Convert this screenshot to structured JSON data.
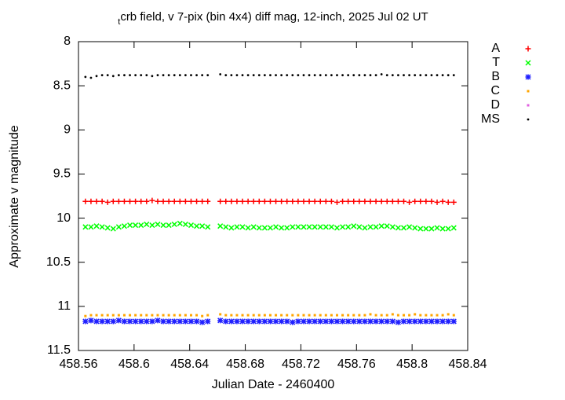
{
  "chart_data": {
    "type": "scatter",
    "title_sub": "t",
    "title": "crb field, v 7-pix (bin 4x4) diff mag, 12-inch, 2025 Jul 02 UT",
    "x_label": "Julian Date - 2460400",
    "y_label": "Approximate v magnitude",
    "xlim": [
      458.56,
      458.84
    ],
    "xticks": [
      458.56,
      458.6,
      458.64,
      458.68,
      458.72,
      458.76,
      458.8,
      458.84
    ],
    "ylim": [
      8,
      11.5
    ],
    "y_inverted": true,
    "yticks": [
      8,
      8.5,
      9,
      9.5,
      10,
      10.5,
      11,
      11.5
    ],
    "grid": false,
    "legend": "outside-top-right",
    "x": [
      458.565,
      458.569,
      458.573,
      458.577,
      458.581,
      458.585,
      458.589,
      458.593,
      458.597,
      458.601,
      458.605,
      458.609,
      458.613,
      458.617,
      458.621,
      458.625,
      458.629,
      458.633,
      458.637,
      458.641,
      458.645,
      458.649,
      458.653,
      458.662,
      458.666,
      458.67,
      458.674,
      458.678,
      458.682,
      458.686,
      458.69,
      458.694,
      458.698,
      458.702,
      458.706,
      458.71,
      458.714,
      458.718,
      458.722,
      458.726,
      458.73,
      458.734,
      458.738,
      458.742,
      458.746,
      458.75,
      458.754,
      458.758,
      458.762,
      458.766,
      458.77,
      458.774,
      458.778,
      458.782,
      458.786,
      458.79,
      458.794,
      458.798,
      458.802,
      458.806,
      458.81,
      458.814,
      458.818,
      458.822,
      458.826,
      458.83
    ],
    "series": [
      {
        "name": "A",
        "color": "#ff0000",
        "marker": "plus",
        "values": [
          9.81,
          9.81,
          9.81,
          9.81,
          9.82,
          9.81,
          9.81,
          9.81,
          9.81,
          9.81,
          9.81,
          9.81,
          9.8,
          9.81,
          9.81,
          9.81,
          9.81,
          9.81,
          9.81,
          9.81,
          9.81,
          9.81,
          9.81,
          9.81,
          9.81,
          9.81,
          9.81,
          9.81,
          9.81,
          9.81,
          9.81,
          9.81,
          9.81,
          9.81,
          9.81,
          9.81,
          9.81,
          9.81,
          9.81,
          9.81,
          9.81,
          9.81,
          9.81,
          9.81,
          9.82,
          9.81,
          9.81,
          9.81,
          9.81,
          9.81,
          9.81,
          9.81,
          9.81,
          9.81,
          9.81,
          9.81,
          9.81,
          9.82,
          9.81,
          9.81,
          9.81,
          9.81,
          9.82,
          9.81,
          9.82,
          9.82
        ]
      },
      {
        "name": "T",
        "color": "#00ff00",
        "marker": "cross",
        "values": [
          10.1,
          10.1,
          10.09,
          10.1,
          10.11,
          10.12,
          10.1,
          10.09,
          10.08,
          10.08,
          10.08,
          10.07,
          10.08,
          10.07,
          10.08,
          10.08,
          10.07,
          10.06,
          10.07,
          10.08,
          10.09,
          10.09,
          10.1,
          10.09,
          10.1,
          10.11,
          10.1,
          10.1,
          10.11,
          10.1,
          10.11,
          10.11,
          10.11,
          10.1,
          10.11,
          10.11,
          10.1,
          10.1,
          10.1,
          10.1,
          10.1,
          10.1,
          10.1,
          10.1,
          10.11,
          10.1,
          10.1,
          10.09,
          10.1,
          10.11,
          10.1,
          10.1,
          10.09,
          10.09,
          10.1,
          10.11,
          10.11,
          10.1,
          10.11,
          10.12,
          10.12,
          10.12,
          10.11,
          10.12,
          10.12,
          10.11
        ]
      },
      {
        "name": "B",
        "color": "#2020ff",
        "marker": "star",
        "values": [
          11.17,
          11.16,
          11.17,
          11.17,
          11.17,
          11.17,
          11.16,
          11.17,
          11.17,
          11.17,
          11.17,
          11.17,
          11.17,
          11.16,
          11.17,
          11.17,
          11.17,
          11.17,
          11.17,
          11.17,
          11.17,
          11.18,
          11.17,
          11.16,
          11.17,
          11.17,
          11.17,
          11.17,
          11.17,
          11.17,
          11.17,
          11.17,
          11.17,
          11.17,
          11.17,
          11.17,
          11.18,
          11.17,
          11.17,
          11.17,
          11.17,
          11.17,
          11.17,
          11.17,
          11.17,
          11.17,
          11.17,
          11.17,
          11.17,
          11.17,
          11.17,
          11.17,
          11.17,
          11.17,
          11.17,
          11.18,
          11.17,
          11.17,
          11.17,
          11.17,
          11.17,
          11.17,
          11.17,
          11.17,
          11.17,
          11.17
        ]
      },
      {
        "name": "C",
        "color": "#ffa500",
        "marker": "square",
        "values": [
          11.11,
          11.1,
          11.1,
          11.1,
          11.1,
          11.1,
          11.1,
          11.1,
          11.1,
          11.1,
          11.1,
          11.1,
          11.1,
          11.1,
          11.1,
          11.1,
          11.1,
          11.1,
          11.1,
          11.1,
          11.1,
          11.11,
          11.1,
          11.09,
          11.1,
          11.1,
          11.1,
          11.1,
          11.1,
          11.1,
          11.1,
          11.1,
          11.1,
          11.1,
          11.1,
          11.1,
          11.1,
          11.1,
          11.1,
          11.1,
          11.1,
          11.1,
          11.1,
          11.1,
          11.1,
          11.1,
          11.1,
          11.1,
          11.1,
          11.1,
          11.09,
          11.1,
          11.1,
          11.1,
          11.09,
          11.1,
          11.1,
          11.1,
          11.09,
          11.1,
          11.1,
          11.1,
          11.1,
          11.1,
          11.09,
          11.1
        ]
      },
      {
        "name": "D",
        "color": "#e060e0",
        "marker": "square",
        "values": [
          null,
          null,
          null,
          null,
          null,
          null,
          null,
          null,
          null,
          null,
          null,
          null,
          null,
          null,
          null,
          null,
          null,
          null,
          null,
          null,
          null,
          null,
          null,
          null,
          null,
          null,
          null,
          null,
          null,
          null,
          null,
          null,
          null,
          null,
          null,
          null,
          null,
          null,
          null,
          null,
          null,
          null,
          null,
          null,
          null,
          null,
          null,
          null,
          null,
          null,
          null,
          null,
          null,
          null,
          null,
          null,
          null,
          null,
          null,
          null,
          null,
          null,
          null,
          null,
          null,
          null
        ]
      },
      {
        "name": "MS",
        "color": "#000000",
        "marker": "dot",
        "values": [
          8.4,
          8.41,
          8.39,
          8.38,
          8.38,
          8.39,
          8.38,
          8.38,
          8.38,
          8.38,
          8.38,
          8.38,
          8.39,
          8.38,
          8.38,
          8.38,
          8.38,
          8.38,
          8.38,
          8.38,
          8.38,
          8.38,
          8.38,
          8.37,
          8.38,
          8.38,
          8.38,
          8.38,
          8.38,
          8.38,
          8.38,
          8.38,
          8.38,
          8.38,
          8.38,
          8.38,
          8.38,
          8.38,
          8.38,
          8.38,
          8.38,
          8.38,
          8.38,
          8.38,
          8.38,
          8.38,
          8.38,
          8.38,
          8.38,
          8.38,
          8.38,
          8.38,
          8.37,
          8.38,
          8.38,
          8.38,
          8.38,
          8.38,
          8.38,
          8.38,
          8.38,
          8.38,
          8.38,
          8.38,
          8.38,
          8.38
        ]
      }
    ]
  }
}
